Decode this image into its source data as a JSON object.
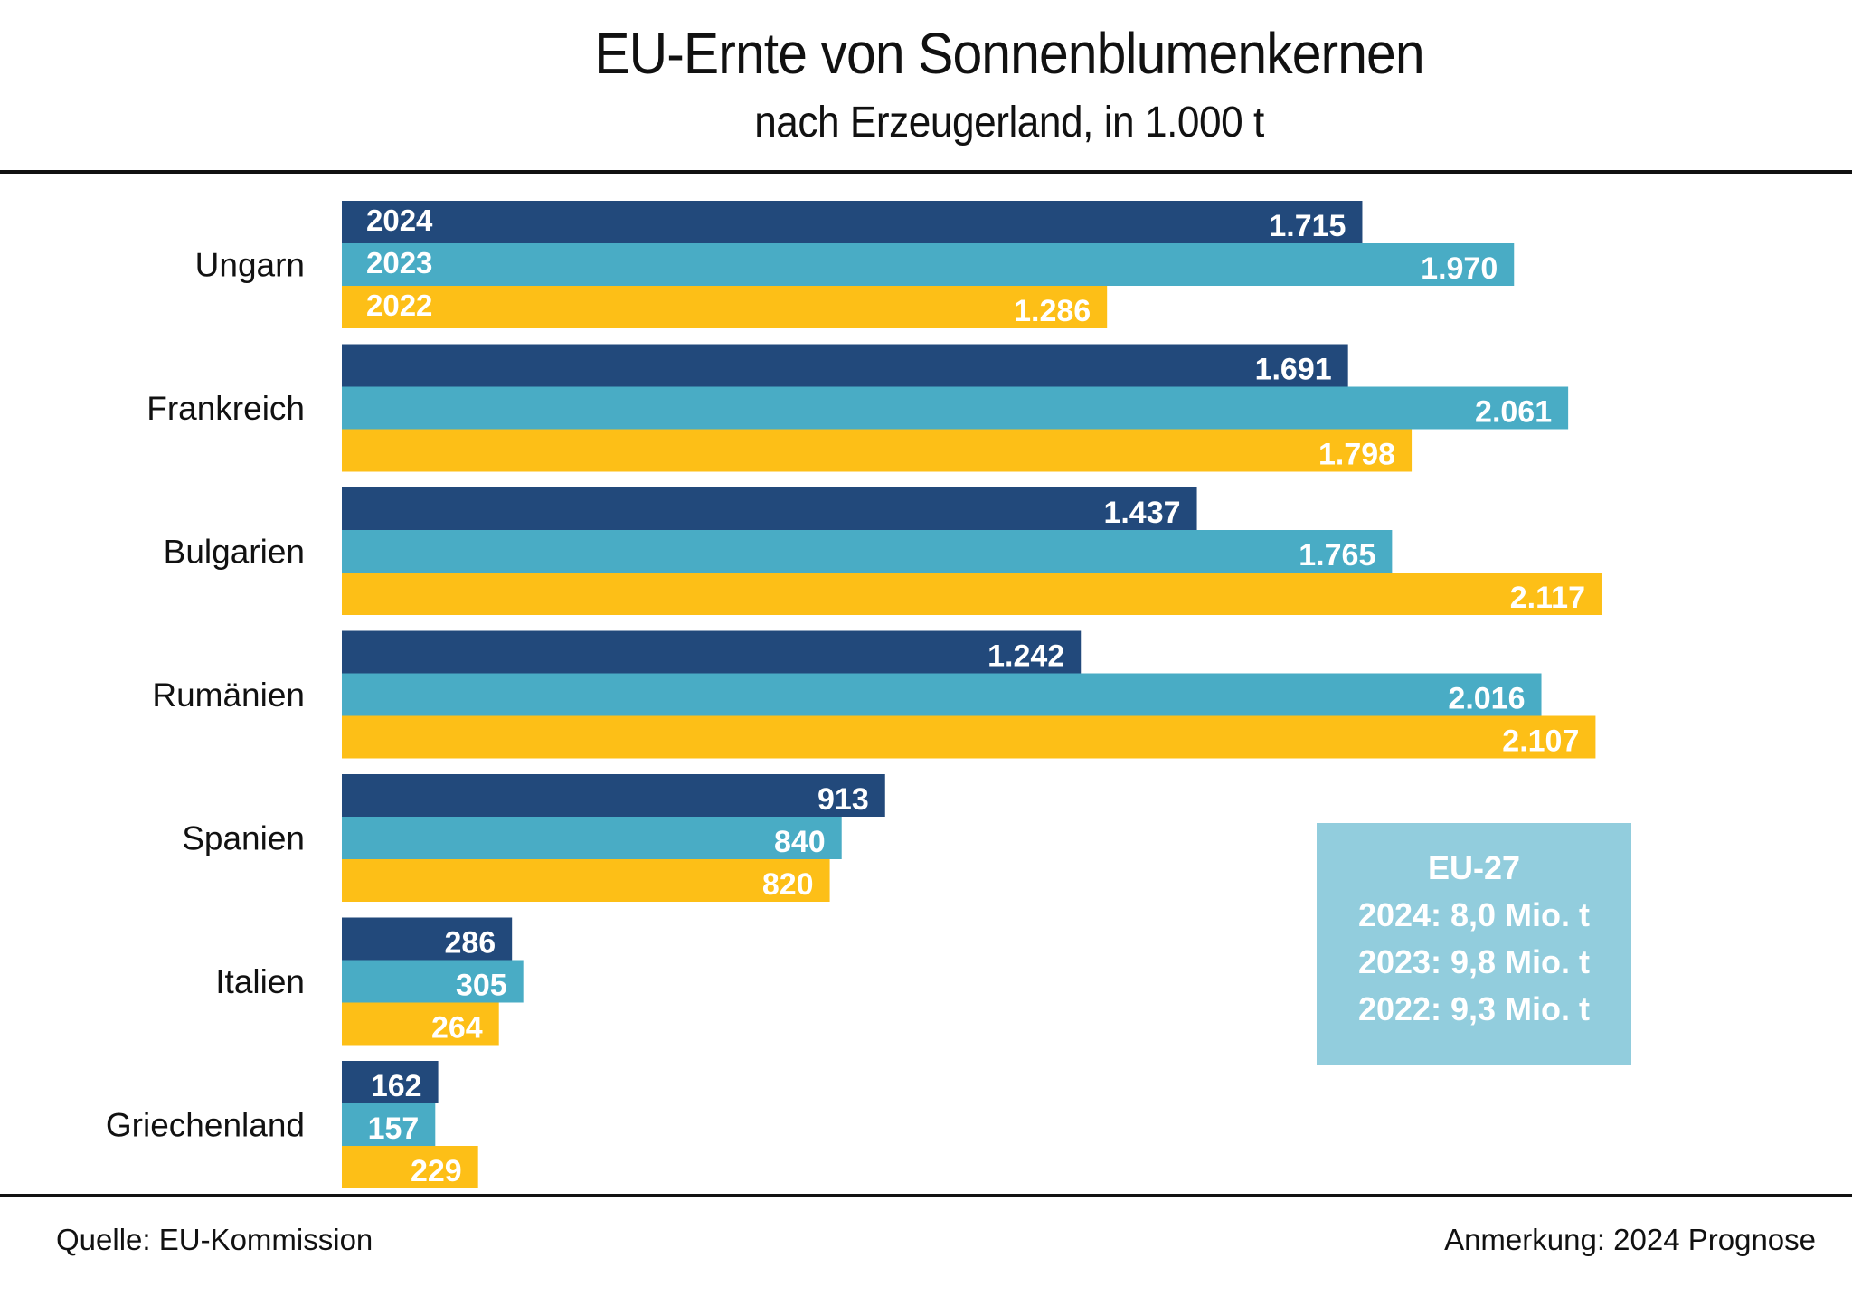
{
  "header": {
    "title": "EU-Ernte von Sonnenblumenkernen",
    "subtitle": "nach Erzeugerland, in 1.000 t"
  },
  "footer": {
    "source": "Quelle: EU-Kommission",
    "note": "Anmerkung:  2024 Prognose"
  },
  "info_box": {
    "title": "EU-27",
    "lines": [
      "2024: 8,0 Mio. t",
      "2023: 9,8 Mio. t",
      "2022: 9,3 Mio. t"
    ],
    "color": "#92cddd"
  },
  "chart_data": {
    "type": "bar",
    "orientation": "horizontal",
    "title": "EU-Ernte von Sonnenblumenkernen",
    "subtitle": "nach Erzeugerland, in 1.000 t",
    "xlabel": "",
    "ylabel": "",
    "unit": "1.000 t",
    "xlim": [
      0,
      2200
    ],
    "grid": false,
    "legend": "inline-labels-in-first-group",
    "categories": [
      "Ungarn",
      "Frankreich",
      "Bulgarien",
      "Rumänien",
      "Spanien",
      "Italien",
      "Griechenland"
    ],
    "series": [
      {
        "name": "2024",
        "color": "#22497b",
        "values": [
          1715,
          1691,
          1437,
          1242,
          913,
          286,
          162
        ],
        "labels": [
          "1.715",
          "1.691",
          "1.437",
          "1.242",
          "913",
          "286",
          "162"
        ]
      },
      {
        "name": "2023",
        "color": "#49acc5",
        "values": [
          1970,
          2061,
          1765,
          2016,
          840,
          305,
          157
        ],
        "labels": [
          "1.970",
          "2.061",
          "1.765",
          "2.016",
          "840",
          "305",
          "157"
        ]
      },
      {
        "name": "2022",
        "color": "#fdbf17",
        "values": [
          1286,
          1798,
          2117,
          2107,
          820,
          264,
          229
        ],
        "labels": [
          "1.286",
          "1.798",
          "2.117",
          "2.107",
          "820",
          "264",
          "229"
        ]
      }
    ]
  }
}
